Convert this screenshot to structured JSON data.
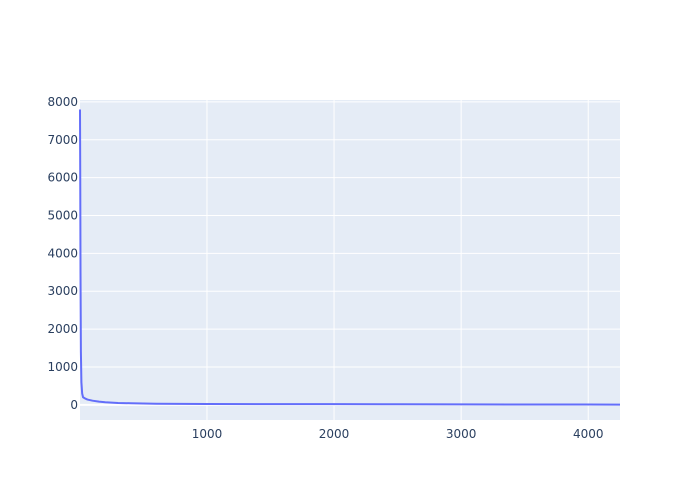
{
  "chart_data": {
    "type": "line",
    "title": "",
    "xlabel": "",
    "ylabel": "",
    "xlim": [
      1,
      4250
    ],
    "ylim": [
      -400,
      8050
    ],
    "x_ticks": [
      1000,
      2000,
      3000,
      4000
    ],
    "x_tick_labels": [
      "1000",
      "2000",
      "3000",
      "4000"
    ],
    "y_ticks": [
      0,
      1000,
      2000,
      3000,
      4000,
      5000,
      6000,
      7000,
      8000
    ],
    "y_tick_labels": [
      "0",
      "1000",
      "2000",
      "3000",
      "4000",
      "5000",
      "6000",
      "7000",
      "8000"
    ],
    "grid": true,
    "legend": false,
    "colors": {
      "plot_background": "#e5ecf6",
      "grid": "#ffffff",
      "line": "#636efa",
      "tick_text": "#2a3f5f"
    },
    "series": [
      {
        "x": [
          1,
          3,
          5,
          8,
          12,
          18,
          25,
          40,
          60,
          100,
          150,
          200,
          300,
          400,
          600,
          800,
          1000,
          1500,
          2000,
          2500,
          3000,
          3500,
          4000,
          4250
        ],
        "y": [
          7800,
          6000,
          3500,
          1400,
          600,
          300,
          200,
          170,
          140,
          110,
          85,
          70,
          50,
          42,
          28,
          25,
          22,
          20,
          18,
          15,
          12,
          10,
          8,
          7
        ]
      }
    ]
  }
}
